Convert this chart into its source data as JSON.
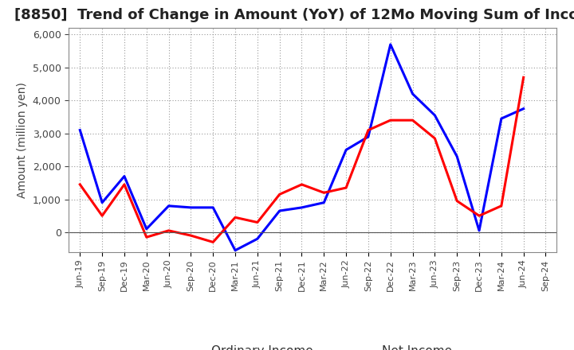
{
  "title": "[8850]  Trend of Change in Amount (YoY) of 12Mo Moving Sum of Incomes",
  "ylabel": "Amount (million yen)",
  "x_labels": [
    "Jun-19",
    "Sep-19",
    "Dec-19",
    "Mar-20",
    "Jun-20",
    "Sep-20",
    "Dec-20",
    "Mar-21",
    "Jun-21",
    "Sep-21",
    "Dec-21",
    "Mar-22",
    "Jun-22",
    "Sep-22",
    "Dec-22",
    "Mar-23",
    "Jun-23",
    "Sep-23",
    "Dec-23",
    "Mar-24",
    "Jun-24",
    "Sep-24"
  ],
  "ordinary_income": [
    3100,
    900,
    1700,
    100,
    800,
    750,
    750,
    -550,
    -200,
    650,
    750,
    900,
    2500,
    2900,
    5700,
    4200,
    3550,
    2300,
    50,
    3450,
    3750,
    null
  ],
  "net_income": [
    1450,
    500,
    1450,
    -150,
    50,
    -100,
    -300,
    450,
    300,
    1150,
    1450,
    1200,
    1350,
    3100,
    3400,
    3400,
    2850,
    950,
    500,
    800,
    4700,
    null
  ],
  "ordinary_color": "#0000FF",
  "net_color": "#FF0000",
  "ylim_min": -600,
  "ylim_max": 6200,
  "ytick_min": 0,
  "ytick_max": 6000,
  "ytick_step": 1000,
  "bg_color": "#FFFFFF",
  "grid_color": "#999999",
  "title_fontsize": 13,
  "axis_label_fontsize": 10,
  "tick_fontsize": 9,
  "legend_fontsize": 11,
  "line_width": 2.2
}
